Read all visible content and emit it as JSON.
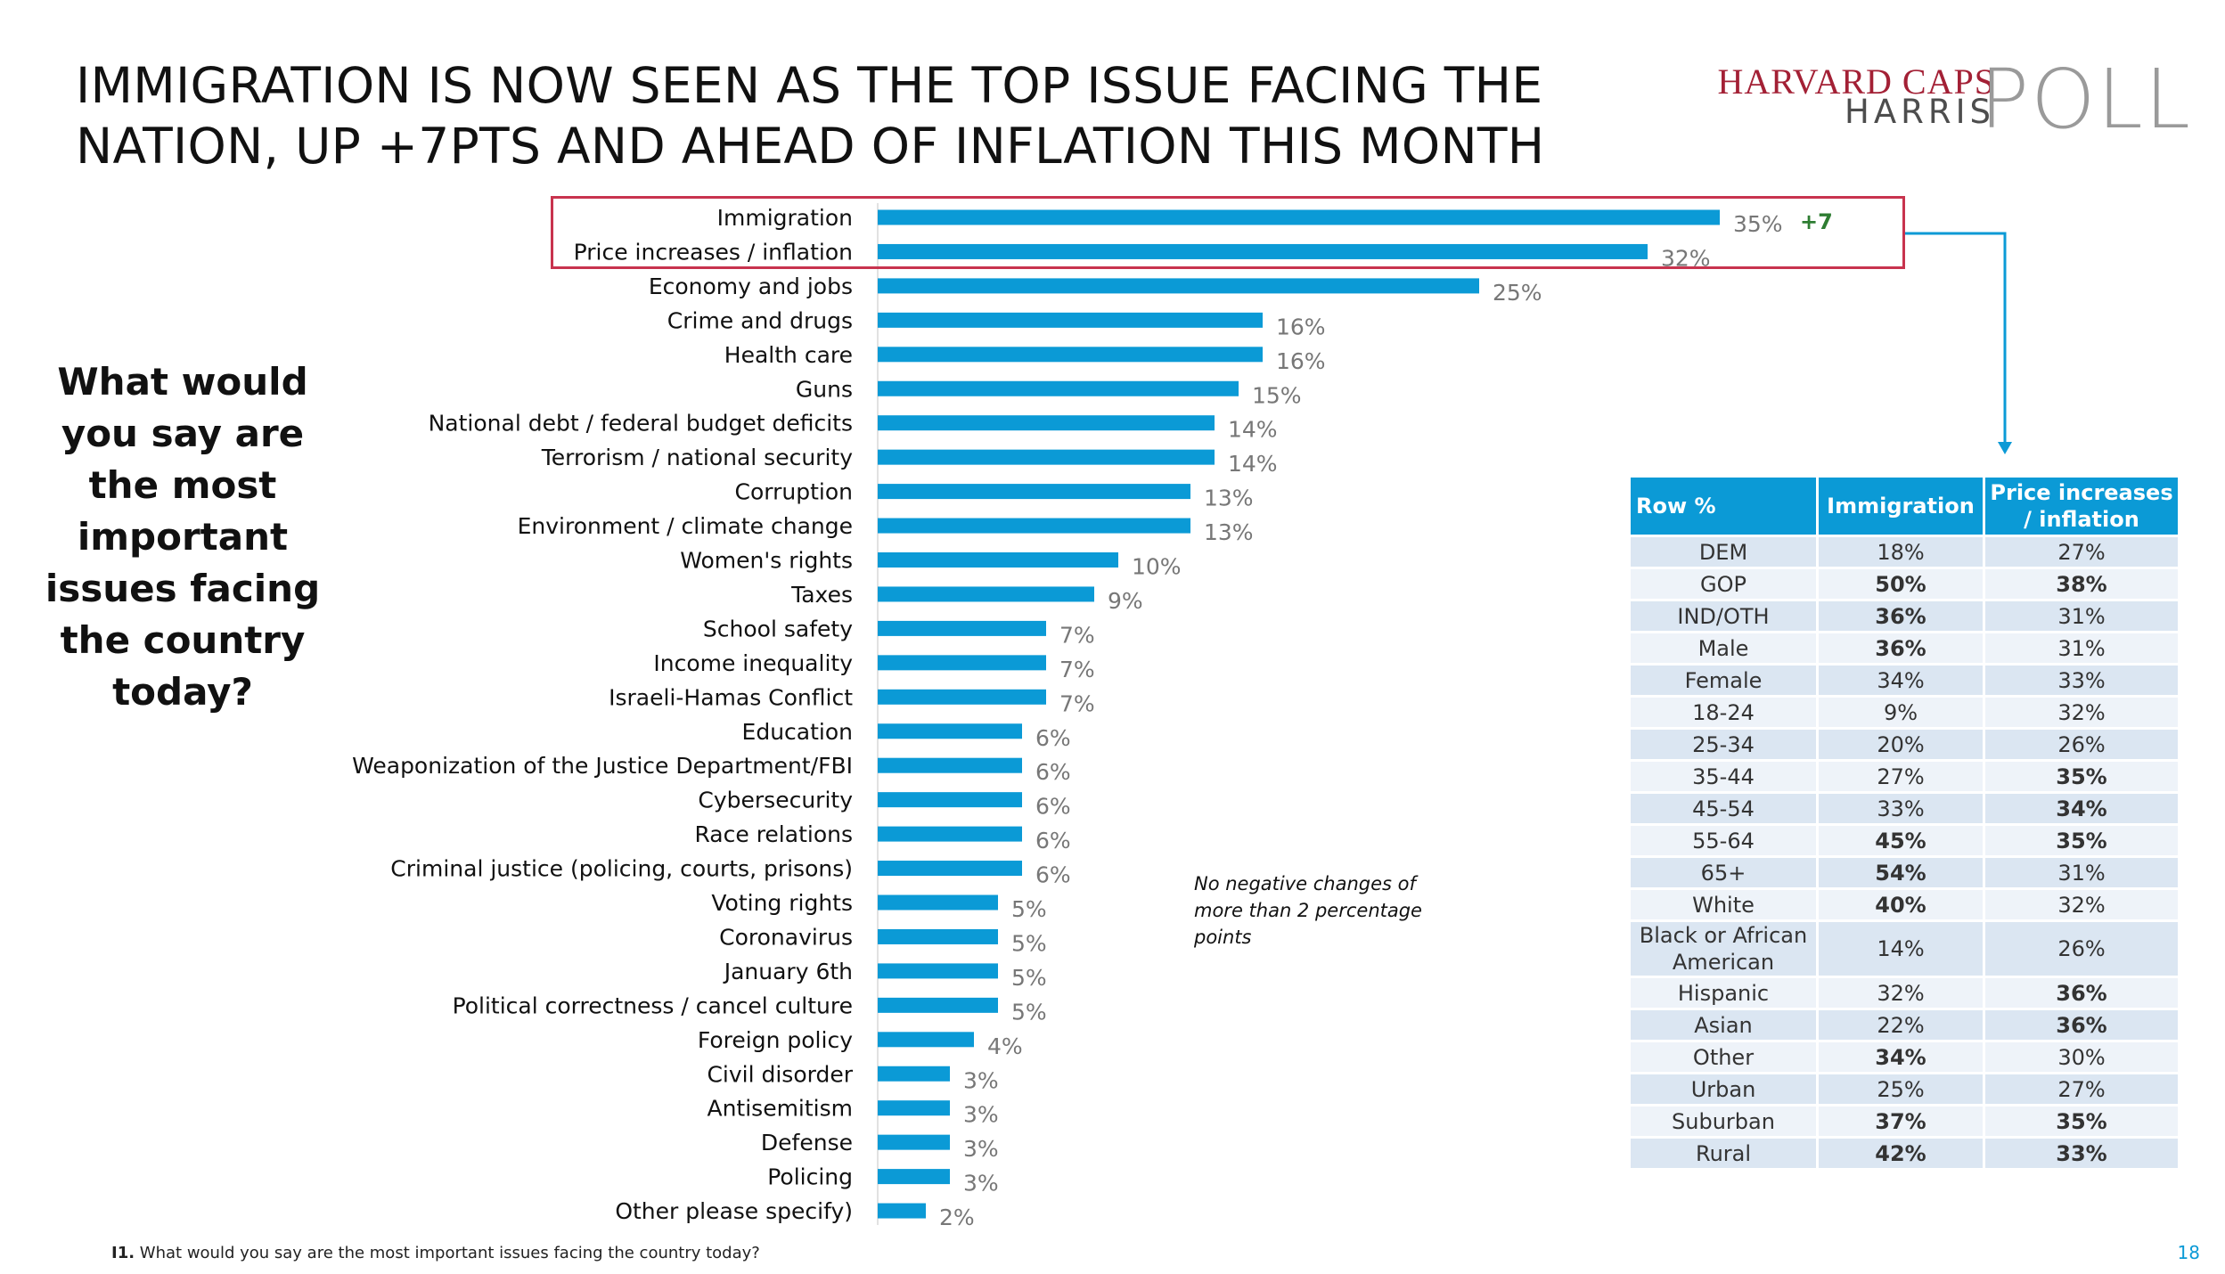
{
  "title": "IMMIGRATION IS NOW SEEN AS THE TOP ISSUE FACING THE NATION, UP +7PTS AND AHEAD OF INFLATION THIS MONTH",
  "logo": {
    "line1": "HARVARD CAPS",
    "line2": "HARRIS",
    "word": "POLL"
  },
  "question": "What would you say are the most important issues facing the country today?",
  "note": "No negative changes of more than 2 percentage points",
  "footnote": {
    "code": "I1.",
    "text": "What would you say are the most important issues facing the country today?"
  },
  "page_number": "18",
  "colors": {
    "bar": "#0b9ad6",
    "highlight": "#c8334e",
    "change": "#2e7d32",
    "table_header": "#0b9ad6",
    "logo_red": "#a32035"
  },
  "chart_data": {
    "type": "bar",
    "orientation": "horizontal",
    "categories": [
      "Immigration",
      "Price increases / inflation",
      "Economy and jobs",
      "Crime and drugs",
      "Health care",
      "Guns",
      "National debt / federal budget deficits",
      "Terrorism / national security",
      "Corruption",
      "Environment / climate change",
      "Women's rights",
      "Taxes",
      "School safety",
      "Income inequality",
      "Israeli-Hamas Conflict",
      "Education",
      "Weaponization of the Justice Department/FBI",
      "Cybersecurity",
      "Race relations",
      "Criminal justice (policing, courts, prisons)",
      "Voting rights",
      "Coronavirus",
      "January 6th",
      "Political correctness / cancel culture",
      "Foreign policy",
      "Civil disorder",
      "Antisemitism",
      "Defense",
      "Policing",
      "Other please specify)"
    ],
    "values": [
      35,
      32,
      25,
      16,
      16,
      15,
      14,
      14,
      13,
      13,
      10,
      9,
      7,
      7,
      7,
      6,
      6,
      6,
      6,
      6,
      5,
      5,
      5,
      5,
      4,
      3,
      3,
      3,
      3,
      2
    ],
    "labels": [
      "35%",
      "32%",
      "25%",
      "16%",
      "16%",
      "15%",
      "14%",
      "14%",
      "13%",
      "13%",
      "10%",
      "9%",
      "7%",
      "7%",
      "7%",
      "6%",
      "6%",
      "6%",
      "6%",
      "6%",
      "5%",
      "5%",
      "5%",
      "5%",
      "4%",
      "3%",
      "3%",
      "3%",
      "3%",
      "2%"
    ],
    "annotations": [
      {
        "category": "Immigration",
        "text": "+7"
      }
    ],
    "xlim": [
      0,
      35
    ]
  },
  "table": {
    "headers": [
      "Row %",
      "Immigration",
      "Price increases / inflation"
    ],
    "rows": [
      {
        "label": "DEM",
        "imm": "18%",
        "imm_bold": false,
        "inf": "27%",
        "inf_bold": false
      },
      {
        "label": "GOP",
        "imm": "50%",
        "imm_bold": true,
        "inf": "38%",
        "inf_bold": true
      },
      {
        "label": "IND/OTH",
        "imm": "36%",
        "imm_bold": true,
        "inf": "31%",
        "inf_bold": false
      },
      {
        "label": "Male",
        "imm": "36%",
        "imm_bold": true,
        "inf": "31%",
        "inf_bold": false
      },
      {
        "label": "Female",
        "imm": "34%",
        "imm_bold": false,
        "inf": "33%",
        "inf_bold": false
      },
      {
        "label": "18-24",
        "imm": "9%",
        "imm_bold": false,
        "inf": "32%",
        "inf_bold": false
      },
      {
        "label": "25-34",
        "imm": "20%",
        "imm_bold": false,
        "inf": "26%",
        "inf_bold": false
      },
      {
        "label": "35-44",
        "imm": "27%",
        "imm_bold": false,
        "inf": "35%",
        "inf_bold": true
      },
      {
        "label": "45-54",
        "imm": "33%",
        "imm_bold": false,
        "inf": "34%",
        "inf_bold": true
      },
      {
        "label": "55-64",
        "imm": "45%",
        "imm_bold": true,
        "inf": "35%",
        "inf_bold": true
      },
      {
        "label": "65+",
        "imm": "54%",
        "imm_bold": true,
        "inf": "31%",
        "inf_bold": false
      },
      {
        "label": "White",
        "imm": "40%",
        "imm_bold": true,
        "inf": "32%",
        "inf_bold": false
      },
      {
        "label": "Black or African American",
        "imm": "14%",
        "imm_bold": false,
        "inf": "26%",
        "inf_bold": false
      },
      {
        "label": "Hispanic",
        "imm": "32%",
        "imm_bold": false,
        "inf": "36%",
        "inf_bold": true
      },
      {
        "label": "Asian",
        "imm": "22%",
        "imm_bold": false,
        "inf": "36%",
        "inf_bold": true
      },
      {
        "label": "Other",
        "imm": "34%",
        "imm_bold": true,
        "inf": "30%",
        "inf_bold": false
      },
      {
        "label": "Urban",
        "imm": "25%",
        "imm_bold": false,
        "inf": "27%",
        "inf_bold": false
      },
      {
        "label": "Suburban",
        "imm": "37%",
        "imm_bold": true,
        "inf": "35%",
        "inf_bold": true
      },
      {
        "label": "Rural",
        "imm": "42%",
        "imm_bold": true,
        "inf": "33%",
        "inf_bold": true
      }
    ]
  }
}
